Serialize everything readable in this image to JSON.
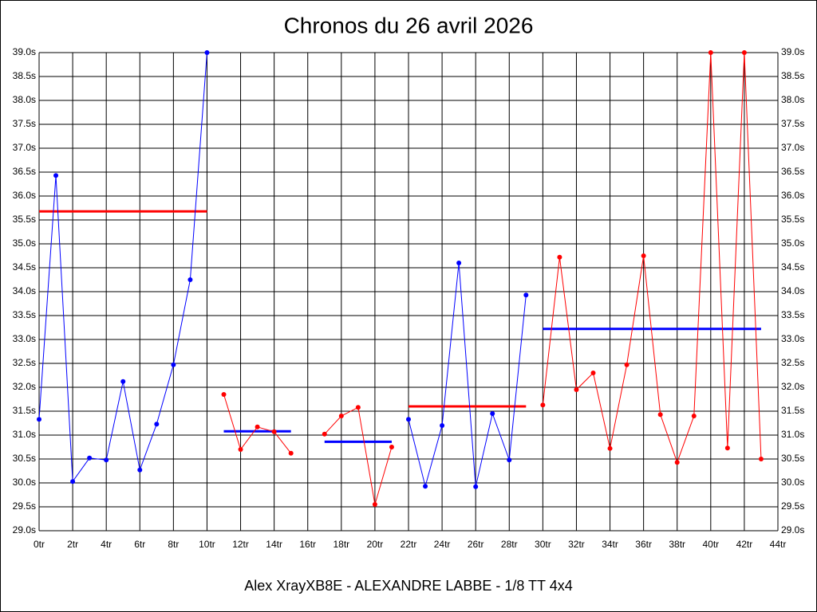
{
  "chart_data": {
    "type": "line",
    "title": "Chronos du 26 avril 2026",
    "footer": "Alex XrayXB8E - ALEXANDRE LABBE - 1/8 TT 4x4",
    "xlim": [
      0,
      44
    ],
    "ylim": [
      29,
      39
    ],
    "grid": true,
    "xticks": [
      {
        "value": 0,
        "label": "0tr"
      },
      {
        "value": 2,
        "label": "2tr"
      },
      {
        "value": 4,
        "label": "4tr"
      },
      {
        "value": 6,
        "label": "6tr"
      },
      {
        "value": 8,
        "label": "8tr"
      },
      {
        "value": 10,
        "label": "10tr"
      },
      {
        "value": 12,
        "label": "12tr"
      },
      {
        "value": 14,
        "label": "14tr"
      },
      {
        "value": 16,
        "label": "16tr"
      },
      {
        "value": 18,
        "label": "18tr"
      },
      {
        "value": 20,
        "label": "20tr"
      },
      {
        "value": 22,
        "label": "22tr"
      },
      {
        "value": 24,
        "label": "24tr"
      },
      {
        "value": 26,
        "label": "26tr"
      },
      {
        "value": 28,
        "label": "28tr"
      },
      {
        "value": 30,
        "label": "30tr"
      },
      {
        "value": 32,
        "label": "32tr"
      },
      {
        "value": 34,
        "label": "34tr"
      },
      {
        "value": 36,
        "label": "36tr"
      },
      {
        "value": 38,
        "label": "38tr"
      },
      {
        "value": 40,
        "label": "40tr"
      },
      {
        "value": 42,
        "label": "42tr"
      },
      {
        "value": 44,
        "label": "44tr"
      }
    ],
    "yticks": [
      {
        "value": 29,
        "label": "29.0s"
      },
      {
        "value": 29.5,
        "label": "29.5s"
      },
      {
        "value": 30,
        "label": "30.0s"
      },
      {
        "value": 30.5,
        "label": "30.5s"
      },
      {
        "value": 31,
        "label": "31.0s"
      },
      {
        "value": 31.5,
        "label": "31.5s"
      },
      {
        "value": 32,
        "label": "32.0s"
      },
      {
        "value": 32.5,
        "label": "32.5s"
      },
      {
        "value": 33,
        "label": "33.0s"
      },
      {
        "value": 33.5,
        "label": "33.5s"
      },
      {
        "value": 34,
        "label": "34.0s"
      },
      {
        "value": 34.5,
        "label": "34.5s"
      },
      {
        "value": 35,
        "label": "35.0s"
      },
      {
        "value": 35.5,
        "label": "35.5s"
      },
      {
        "value": 36,
        "label": "36.0s"
      },
      {
        "value": 36.5,
        "label": "36.5s"
      },
      {
        "value": 37,
        "label": "37.0s"
      },
      {
        "value": 37.5,
        "label": "37.5s"
      },
      {
        "value": 38,
        "label": "38.0s"
      },
      {
        "value": 38.5,
        "label": "38.5s"
      },
      {
        "value": 39,
        "label": "39.0s"
      }
    ],
    "series": [
      {
        "color": "#0000ff",
        "x": [
          0,
          1,
          2,
          3,
          4,
          5,
          6,
          7,
          8,
          9,
          10
        ],
        "values": [
          31.33,
          36.43,
          30.03,
          30.52,
          30.48,
          32.12,
          30.27,
          31.23,
          32.47,
          34.25,
          39.0
        ]
      },
      {
        "color": "#ff0000",
        "x": [
          11,
          12,
          13,
          14,
          15
        ],
        "values": [
          31.85,
          30.7,
          31.17,
          31.07,
          30.62
        ]
      },
      {
        "color": "#ff0000",
        "x": [
          17,
          18,
          19,
          20,
          21
        ],
        "values": [
          31.02,
          31.4,
          31.58,
          29.55,
          30.75
        ]
      },
      {
        "color": "#0000ff",
        "x": [
          22,
          23,
          24,
          25,
          26,
          27,
          28,
          29
        ],
        "values": [
          31.33,
          29.93,
          31.2,
          34.6,
          29.92,
          31.45,
          30.48,
          33.93
        ]
      },
      {
        "color": "#ff0000",
        "x": [
          30,
          31,
          32,
          33,
          34,
          35,
          36,
          37,
          38,
          39,
          40,
          41,
          42,
          43
        ],
        "values": [
          31.63,
          34.72,
          31.95,
          32.3,
          30.72,
          32.47,
          34.75,
          31.43,
          30.43,
          31.4,
          39.0,
          30.73,
          39.0,
          30.5
        ]
      }
    ],
    "averages": [
      {
        "color": "#ff0000",
        "value": 35.68,
        "x": [
          0,
          10
        ]
      },
      {
        "color": "#0000ff",
        "value": 31.08,
        "x": [
          11,
          15
        ]
      },
      {
        "color": "#0000ff",
        "value": 30.86,
        "x": [
          17,
          21
        ]
      },
      {
        "color": "#ff0000",
        "value": 31.6,
        "x": [
          22,
          29
        ]
      },
      {
        "color": "#0000ff",
        "value": 33.22,
        "x": [
          30,
          43
        ]
      }
    ]
  }
}
